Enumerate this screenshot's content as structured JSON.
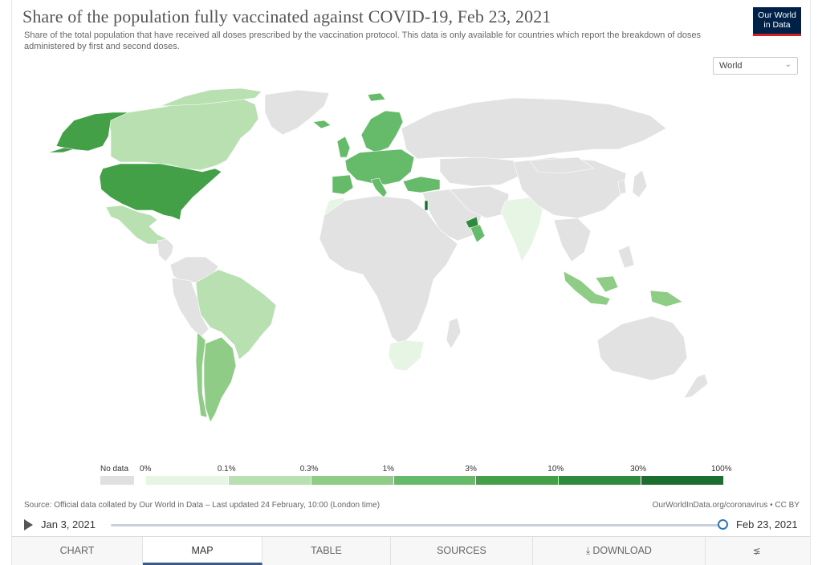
{
  "header": {
    "title": "Share of the population fully vaccinated against COVID-19, Feb 23, 2021",
    "subtitle": "Share of the total population that have received all doses prescribed by the vaccination protocol. This data is only available for countries which report the breakdown of doses administered by first and second doses.",
    "logo_line1": "Our World",
    "logo_line2": "in Data",
    "logo_colors": {
      "background": "#002147",
      "accent": "#ce261e"
    }
  },
  "region_select": {
    "value": "World",
    "icon": "chevron-down-icon"
  },
  "legend": {
    "no_data_label": "No data",
    "no_data_color": "#e0e0e0",
    "bins": [
      {
        "label": "0%",
        "color": "#e7f5e4"
      },
      {
        "label": "0.1%",
        "color": "#b9e0b1"
      },
      {
        "label": "0.3%",
        "color": "#8fcd86"
      },
      {
        "label": "1%",
        "color": "#66bb6a"
      },
      {
        "label": "3%",
        "color": "#43a047"
      },
      {
        "label": "10%",
        "color": "#2e8b3e"
      },
      {
        "label": "30%",
        "color": "#1b6e2f"
      },
      {
        "label": "100%",
        "color": ""
      }
    ],
    "last_color": "#0f4f22"
  },
  "map_data": {
    "no_data_color": "#e2e2e2",
    "country_bins": [
      {
        "region": "Alaska (United States)",
        "bin": "3%"
      },
      {
        "region": "United States",
        "bin": "3%"
      },
      {
        "region": "Canada",
        "bin": "0.1%"
      },
      {
        "region": "Mexico",
        "bin": "0.1%"
      },
      {
        "region": "Brazil",
        "bin": "0.1%"
      },
      {
        "region": "Argentina",
        "bin": "0.3%"
      },
      {
        "region": "Chile",
        "bin": "0.3%"
      },
      {
        "region": "Europe",
        "bin": "1%"
      },
      {
        "region": "Turkey",
        "bin": "1%"
      },
      {
        "region": "Morocco",
        "bin": "0%"
      },
      {
        "region": "Israel",
        "bin": "30%"
      },
      {
        "region": "United Arab Emirates",
        "bin": "10%"
      },
      {
        "region": "Oman",
        "bin": "1%"
      },
      {
        "region": "India",
        "bin": "0%"
      },
      {
        "region": "Indonesia",
        "bin": "0.3%"
      },
      {
        "region": "South Africa",
        "bin": "0%"
      }
    ]
  },
  "footer": {
    "source": "Source: Official data collated by Our World in Data – Last updated 24 February, 10:00 (London time)",
    "license": "OurWorldInData.org/coronavirus • CC BY"
  },
  "timeline": {
    "start": "Jan 3, 2021",
    "end": "Feb 23, 2021",
    "position": 1.0
  },
  "tabs": [
    {
      "label": "CHART",
      "active": false,
      "icon": ""
    },
    {
      "label": "MAP",
      "active": true,
      "icon": ""
    },
    {
      "label": "TABLE",
      "active": false,
      "icon": ""
    },
    {
      "label": "SOURCES",
      "active": false,
      "icon": ""
    },
    {
      "label": "DOWNLOAD",
      "active": false,
      "icon": "download-icon"
    },
    {
      "label": "",
      "active": false,
      "icon": "share-icon"
    }
  ]
}
